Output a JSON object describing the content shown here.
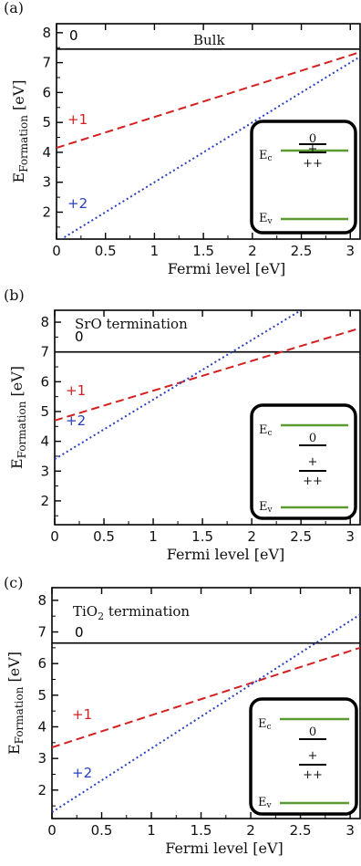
{
  "chart_data": [
    {
      "type": "line",
      "panel_label": "(a)",
      "annotation": "Bulk",
      "xlabel": "Fermi level [eV]",
      "ylabel": {
        "main": "E",
        "sub": "Formation",
        "unit": " [eV]"
      },
      "xlim": [
        0,
        3.1
      ],
      "ylim": [
        1.1,
        8.3
      ],
      "xticks": [
        0,
        0.5,
        1,
        1.5,
        2,
        2.5,
        3
      ],
      "xtick_labels": [
        "0",
        "0.5",
        "1",
        "1.5",
        "2",
        "2.5",
        "3"
      ],
      "yticks": [
        2,
        3,
        4,
        5,
        6,
        7,
        8
      ],
      "ytick_labels": [
        "2",
        "3",
        "4",
        "5",
        "6",
        "7",
        "8"
      ],
      "series": [
        {
          "name": "0",
          "color": "#000000",
          "dash": "solid",
          "x": [
            0,
            3.1
          ],
          "y": [
            7.45,
            7.45
          ]
        },
        {
          "name": "+1",
          "color": "#d42020",
          "dash": "dashed",
          "x": [
            0,
            3.1
          ],
          "y": [
            4.15,
            7.35
          ]
        },
        {
          "name": "+2",
          "color": "#2a3fc0",
          "dash": "dotted",
          "x": [
            0,
            3.1
          ],
          "y": [
            1.0,
            7.2
          ]
        }
      ],
      "inset": {
        "ec": "E",
        "ec_sub": "c",
        "ev": "E",
        "ev_sub": "v",
        "levels": [
          "0",
          "+",
          "++"
        ]
      }
    },
    {
      "type": "line",
      "panel_label": "(b)",
      "annotation": "SrO termination",
      "xlabel": "Fermi level [eV]",
      "ylabel": {
        "main": "E",
        "sub": "Formation",
        "unit": " [eV]"
      },
      "xlim": [
        0,
        3.1
      ],
      "ylim": [
        1.2,
        8.4
      ],
      "xticks": [
        0,
        0.5,
        1,
        1.5,
        2,
        2.5,
        3
      ],
      "xtick_labels": [
        "0",
        "0.5",
        "1",
        "1.5",
        "2",
        "2.5",
        "3"
      ],
      "yticks": [
        2,
        3,
        4,
        5,
        6,
        7,
        8
      ],
      "ytick_labels": [
        "2",
        "3",
        "4",
        "5",
        "6",
        "7",
        "8"
      ],
      "series": [
        {
          "name": "0",
          "color": "#000000",
          "dash": "solid",
          "x": [
            0,
            3.1
          ],
          "y": [
            7.0,
            7.0
          ]
        },
        {
          "name": "+1",
          "color": "#d42020",
          "dash": "dashed",
          "x": [
            0,
            3.1
          ],
          "y": [
            4.7,
            7.8
          ]
        },
        {
          "name": "+2",
          "color": "#2a3fc0",
          "dash": "dotted",
          "x": [
            0,
            2.55
          ],
          "y": [
            3.4,
            8.5
          ]
        }
      ],
      "inset": {
        "ec": "E",
        "ec_sub": "c",
        "ev": "E",
        "ev_sub": "v",
        "levels": [
          "0",
          "+",
          "++"
        ]
      }
    },
    {
      "type": "line",
      "panel_label": "(c)",
      "annotation": "TiO",
      "annotation_sub": "2",
      "annotation_rest": " termination",
      "xlabel": "Fermi level [eV]",
      "ylabel": {
        "main": "E",
        "sub": "Formation",
        "unit": " [eV]"
      },
      "xlim": [
        0,
        3.1
      ],
      "ylim": [
        1.1,
        8.4
      ],
      "xticks": [
        0,
        0.5,
        1,
        1.5,
        2,
        2.5,
        3
      ],
      "xtick_labels": [
        "0",
        "0.5",
        "1",
        "1.5",
        "2",
        "2.5",
        "3"
      ],
      "yticks": [
        2,
        3,
        4,
        5,
        6,
        7,
        8
      ],
      "ytick_labels": [
        "2",
        "3",
        "4",
        "5",
        "6",
        "7",
        "8"
      ],
      "series": [
        {
          "name": "0",
          "color": "#000000",
          "dash": "solid",
          "x": [
            0,
            3.1
          ],
          "y": [
            6.65,
            6.65
          ]
        },
        {
          "name": "+1",
          "color": "#d42020",
          "dash": "dashed",
          "x": [
            0,
            3.1
          ],
          "y": [
            3.35,
            6.5
          ]
        },
        {
          "name": "+2",
          "color": "#2a3fc0",
          "dash": "dotted",
          "x": [
            0,
            3.1
          ],
          "y": [
            1.3,
            7.55
          ]
        }
      ],
      "inset": {
        "ec": "E",
        "ec_sub": "c",
        "ev": "E",
        "ev_sub": "v",
        "levels": [
          "0",
          "+",
          "++"
        ]
      }
    }
  ]
}
